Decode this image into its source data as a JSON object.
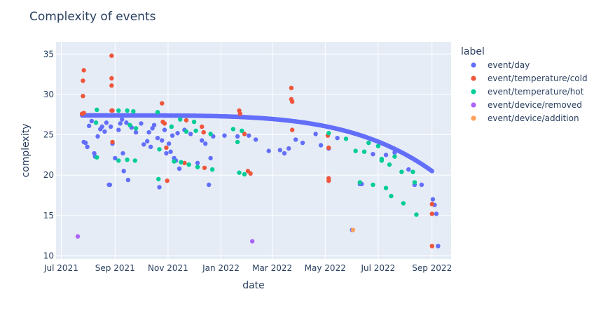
{
  "chart_data": {
    "type": "scatter",
    "title": "Complexity of events",
    "xlabel": "date",
    "ylabel": "complexity",
    "xlim": [
      "2021-06-25",
      "2022-09-23"
    ],
    "ylim": [
      9.6,
      36.5
    ],
    "grid": true,
    "legend_position": "right",
    "legend_title": "label",
    "x_ticks": [
      {
        "value": "2021-07-01",
        "label": "Jul 2021"
      },
      {
        "value": "2021-09-01",
        "label": "Sep 2021"
      },
      {
        "value": "2021-11-01",
        "label": "Nov 2021"
      },
      {
        "value": "2022-01-01",
        "label": "Jan 2022"
      },
      {
        "value": "2022-03-01",
        "label": "Mar 2022"
      },
      {
        "value": "2022-05-01",
        "label": "May 2022"
      },
      {
        "value": "2022-07-01",
        "label": "Jul 2022"
      },
      {
        "value": "2022-09-01",
        "label": "Sep 2022"
      }
    ],
    "y_ticks": [
      10,
      15,
      20,
      25,
      30,
      35
    ],
    "series": [
      {
        "name": "event/day",
        "color": "#636efa",
        "curve": {
          "start": "2021-07-25",
          "end": "2022-09-01",
          "y_start": 27.4,
          "y_end": 20.5
        },
        "points": [
          [
            "2021-07-27",
            24.1
          ],
          [
            "2021-07-29",
            24.0
          ],
          [
            "2021-07-31",
            23.5
          ],
          [
            "2021-08-02",
            26.1
          ],
          [
            "2021-08-05",
            26.7
          ],
          [
            "2021-08-08",
            22.7
          ],
          [
            "2021-08-09",
            22.3
          ],
          [
            "2021-08-12",
            24.8
          ],
          [
            "2021-08-15",
            25.7
          ],
          [
            "2021-08-17",
            26.0
          ],
          [
            "2021-08-20",
            25.4
          ],
          [
            "2021-08-22",
            26.5
          ],
          [
            "2021-08-25",
            18.8
          ],
          [
            "2021-08-26",
            18.8
          ],
          [
            "2021-08-27",
            26.0
          ],
          [
            "2021-08-29",
            23.9
          ],
          [
            "2021-09-01",
            22.1
          ],
          [
            "2021-09-05",
            25.6
          ],
          [
            "2021-09-07",
            26.4
          ],
          [
            "2021-09-09",
            26.9
          ],
          [
            "2021-09-10",
            22.7
          ],
          [
            "2021-09-11",
            20.5
          ],
          [
            "2021-09-14",
            26.5
          ],
          [
            "2021-09-16",
            19.4
          ],
          [
            "2021-09-20",
            25.9
          ],
          [
            "2021-09-25",
            25.3
          ],
          [
            "2021-10-01",
            26.4
          ],
          [
            "2021-10-04",
            23.8
          ],
          [
            "2021-10-08",
            24.2
          ],
          [
            "2021-10-10",
            25.3
          ],
          [
            "2021-10-12",
            23.5
          ],
          [
            "2021-10-14",
            25.8
          ],
          [
            "2021-10-16",
            26.2
          ],
          [
            "2021-10-20",
            24.6
          ],
          [
            "2021-10-22",
            18.5
          ],
          [
            "2021-10-25",
            24.3
          ],
          [
            "2021-10-28",
            25.6
          ],
          [
            "2021-10-30",
            22.7
          ],
          [
            "2021-11-02",
            23.9
          ],
          [
            "2021-11-04",
            22.9
          ],
          [
            "2021-11-06",
            24.9
          ],
          [
            "2021-11-08",
            22.1
          ],
          [
            "2021-11-10",
            21.8
          ],
          [
            "2021-11-12",
            25.2
          ],
          [
            "2021-11-14",
            20.8
          ],
          [
            "2021-11-20",
            25.6
          ],
          [
            "2021-11-27",
            25.1
          ],
          [
            "2021-12-05",
            21.5
          ],
          [
            "2021-12-10",
            24.3
          ],
          [
            "2021-12-14",
            23.9
          ],
          [
            "2021-12-18",
            18.8
          ],
          [
            "2021-12-20",
            22.1
          ],
          [
            "2021-12-23",
            24.8
          ],
          [
            "2022-01-05",
            24.9
          ],
          [
            "2022-01-20",
            24.8
          ],
          [
            "2022-02-02",
            24.9
          ],
          [
            "2022-02-10",
            24.4
          ],
          [
            "2022-02-25",
            23.0
          ],
          [
            "2022-03-10",
            23.1
          ],
          [
            "2022-03-15",
            22.7
          ],
          [
            "2022-03-20",
            23.3
          ],
          [
            "2022-03-28",
            24.4
          ],
          [
            "2022-04-05",
            24.0
          ],
          [
            "2022-04-20",
            25.1
          ],
          [
            "2022-04-26",
            23.7
          ],
          [
            "2022-05-05",
            23.3
          ],
          [
            "2022-05-15",
            24.6
          ],
          [
            "2022-06-01",
            13.2
          ],
          [
            "2022-06-10",
            18.9
          ],
          [
            "2022-06-12",
            18.9
          ],
          [
            "2022-06-25",
            22.6
          ],
          [
            "2022-07-10",
            22.5
          ],
          [
            "2022-07-20",
            22.8
          ],
          [
            "2022-08-05",
            20.7
          ],
          [
            "2022-08-12",
            18.8
          ],
          [
            "2022-08-20",
            18.8
          ],
          [
            "2022-09-02",
            17.0
          ],
          [
            "2022-09-04",
            16.3
          ],
          [
            "2022-09-06",
            15.2
          ],
          [
            "2022-09-08",
            11.2
          ]
        ]
      },
      {
        "name": "event/temperature/cold",
        "color": "#ef553b",
        "points": [
          [
            "2021-07-25",
            27.6
          ],
          [
            "2021-07-26",
            31.7
          ],
          [
            "2021-07-26",
            29.8
          ],
          [
            "2021-07-27",
            33.0
          ],
          [
            "2021-07-27",
            27.7
          ],
          [
            "2021-08-28",
            34.8
          ],
          [
            "2021-08-28",
            32.0
          ],
          [
            "2021-08-28",
            31.1
          ],
          [
            "2021-08-28",
            28.0
          ],
          [
            "2021-08-29",
            28.0
          ],
          [
            "2021-08-29",
            24.1
          ],
          [
            "2021-10-25",
            28.9
          ],
          [
            "2021-10-26",
            26.6
          ],
          [
            "2021-10-28",
            26.4
          ],
          [
            "2021-10-30",
            23.4
          ],
          [
            "2021-10-31",
            19.3
          ],
          [
            "2021-11-20",
            21.5
          ],
          [
            "2021-11-22",
            26.8
          ],
          [
            "2021-12-10",
            26.0
          ],
          [
            "2021-12-12",
            25.3
          ],
          [
            "2021-12-13",
            20.9
          ],
          [
            "2022-01-22",
            28.0
          ],
          [
            "2022-01-23",
            27.6
          ],
          [
            "2022-01-28",
            25.1
          ],
          [
            "2022-02-01",
            20.5
          ],
          [
            "2022-02-04",
            20.2
          ],
          [
            "2022-03-23",
            30.8
          ],
          [
            "2022-03-23",
            29.4
          ],
          [
            "2022-03-24",
            29.1
          ],
          [
            "2022-03-24",
            25.6
          ],
          [
            "2022-05-04",
            24.9
          ],
          [
            "2022-05-05",
            23.4
          ],
          [
            "2022-05-05",
            19.6
          ],
          [
            "2022-05-05",
            19.3
          ],
          [
            "2022-09-01",
            16.4
          ],
          [
            "2022-09-01",
            15.2
          ],
          [
            "2022-09-01",
            11.2
          ]
        ]
      },
      {
        "name": "event/temperature/hot",
        "color": "#00cc96",
        "points": [
          [
            "2021-08-10",
            26.5
          ],
          [
            "2021-08-11",
            22.2
          ],
          [
            "2021-08-11",
            28.1
          ],
          [
            "2021-09-05",
            28.0
          ],
          [
            "2021-09-05",
            21.8
          ],
          [
            "2021-09-15",
            28.0
          ],
          [
            "2021-09-15",
            21.9
          ],
          [
            "2021-09-18",
            26.2
          ],
          [
            "2021-09-22",
            27.9
          ],
          [
            "2021-09-24",
            21.8
          ],
          [
            "2021-09-25",
            25.8
          ],
          [
            "2021-10-20",
            27.8
          ],
          [
            "2021-10-21",
            19.5
          ],
          [
            "2021-10-22",
            23.2
          ],
          [
            "2021-11-05",
            26.0
          ],
          [
            "2021-11-08",
            21.7
          ],
          [
            "2021-11-15",
            26.9
          ],
          [
            "2021-11-16",
            21.6
          ],
          [
            "2021-11-22",
            25.4
          ],
          [
            "2021-11-25",
            21.3
          ],
          [
            "2021-12-01",
            26.6
          ],
          [
            "2021-12-03",
            25.5
          ],
          [
            "2021-12-05",
            21.0
          ],
          [
            "2021-12-20",
            25.1
          ],
          [
            "2021-12-22",
            20.7
          ],
          [
            "2022-01-15",
            25.7
          ],
          [
            "2022-01-20",
            24.1
          ],
          [
            "2022-01-22",
            20.3
          ],
          [
            "2022-01-25",
            25.5
          ],
          [
            "2022-01-28",
            20.1
          ],
          [
            "2022-05-05",
            25.2
          ],
          [
            "2022-05-25",
            24.5
          ],
          [
            "2022-06-05",
            23.0
          ],
          [
            "2022-06-10",
            19.1
          ],
          [
            "2022-06-15",
            22.9
          ],
          [
            "2022-06-20",
            24.0
          ],
          [
            "2022-06-25",
            18.8
          ],
          [
            "2022-07-01",
            23.6
          ],
          [
            "2022-07-05",
            22.0
          ],
          [
            "2022-07-10",
            18.4
          ],
          [
            "2022-07-14",
            21.3
          ],
          [
            "2022-07-16",
            17.4
          ],
          [
            "2022-07-20",
            22.3
          ],
          [
            "2022-07-28",
            20.4
          ],
          [
            "2022-07-30",
            16.5
          ],
          [
            "2022-08-10",
            20.4
          ],
          [
            "2022-08-12",
            19.1
          ],
          [
            "2022-08-14",
            15.1
          ],
          [
            "2022-07-05",
            21.8
          ]
        ]
      },
      {
        "name": "event/device/removed",
        "color": "#ab63fa",
        "points": [
          [
            "2021-07-20",
            12.4
          ],
          [
            "2022-02-06",
            11.8
          ]
        ]
      },
      {
        "name": "event/device/addition",
        "color": "#ffa15a",
        "points": [
          [
            "2022-06-02",
            13.2
          ]
        ]
      }
    ]
  }
}
